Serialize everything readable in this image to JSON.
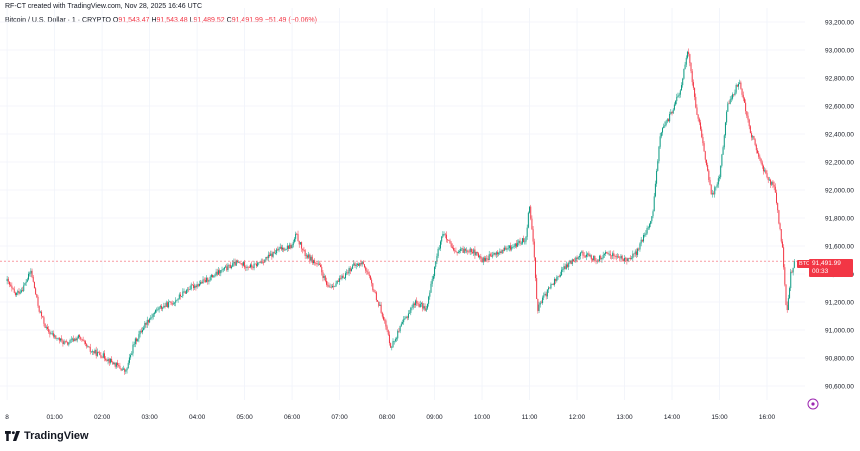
{
  "header": {
    "created_text": "RF-CT created with TradingView.com, Nov 28, 2025 16:46 UTC"
  },
  "legend": {
    "symbol": "Bitcoin / U.S. Dollar · 1 · CRYPTO",
    "open_label": "O",
    "open": "91,543.47",
    "high_label": "H",
    "high": "91,543.48",
    "low_label": "L",
    "low": "91,489.52",
    "close_label": "C",
    "close": "91,491.99",
    "change": "−51.49 (−0.06%)"
  },
  "price_badge": {
    "symbol": "BTCUSD",
    "price": "91,491.99",
    "countdown": "00:33"
  },
  "footer": {
    "brand": "TradingView"
  },
  "colors": {
    "up": "#089981",
    "down": "#f23645",
    "grid": "#f0f3fa",
    "axis_text": "#131722"
  },
  "icons": [
    "tradingview-logo-icon",
    "settings-icon"
  ],
  "chart_data": {
    "type": "candlestick",
    "title": "Bitcoin / U.S. Dollar · 1 · CRYPTO",
    "ylim": [
      90500,
      93300
    ],
    "y_ticks": [
      "93,200.00",
      "93,000.00",
      "92,800.00",
      "92,600.00",
      "92,400.00",
      "92,200.00",
      "92,000.00",
      "91,800.00",
      "91,600.00",
      "91,400.00",
      "91,200.00",
      "91,000.00",
      "90,800.00",
      "90,600.00"
    ],
    "x_ticks": [
      "8",
      "01:00",
      "02:00",
      "03:00",
      "04:00",
      "05:00",
      "06:00",
      "07:00",
      "08:00",
      "09:00",
      "10:00",
      "11:00",
      "12:00",
      "13:00",
      "14:00",
      "15:00",
      "16:00"
    ],
    "last_price": 91491.99,
    "price_path": [
      [
        "00:00",
        91350
      ],
      [
        "00:10",
        91250
      ],
      [
        "00:20",
        91300
      ],
      [
        "00:30",
        91420
      ],
      [
        "00:40",
        91150
      ],
      [
        "00:50",
        91000
      ],
      [
        "01:00",
        90950
      ],
      [
        "01:15",
        90900
      ],
      [
        "01:30",
        90950
      ],
      [
        "01:45",
        90850
      ],
      [
        "02:00",
        90820
      ],
      [
        "02:15",
        90760
      ],
      [
        "02:30",
        90700
      ],
      [
        "02:40",
        90900
      ],
      [
        "02:55",
        91050
      ],
      [
        "03:10",
        91150
      ],
      [
        "03:30",
        91200
      ],
      [
        "03:50",
        91300
      ],
      [
        "04:10",
        91350
      ],
      [
        "04:30",
        91420
      ],
      [
        "04:50",
        91480
      ],
      [
        "05:10",
        91450
      ],
      [
        "05:30",
        91520
      ],
      [
        "05:45",
        91580
      ],
      [
        "06:00",
        91600
      ],
      [
        "06:05",
        91680
      ],
      [
        "06:15",
        91550
      ],
      [
        "06:35",
        91450
      ],
      [
        "06:45",
        91300
      ],
      [
        "07:00",
        91350
      ],
      [
        "07:15",
        91450
      ],
      [
        "07:30",
        91480
      ],
      [
        "07:40",
        91330
      ],
      [
        "07:55",
        91100
      ],
      [
        "08:05",
        90880
      ],
      [
        "08:20",
        91050
      ],
      [
        "08:35",
        91200
      ],
      [
        "08:50",
        91150
      ],
      [
        "09:00",
        91450
      ],
      [
        "09:10",
        91700
      ],
      [
        "09:25",
        91550
      ],
      [
        "09:45",
        91580
      ],
      [
        "10:00",
        91500
      ],
      [
        "10:20",
        91550
      ],
      [
        "10:40",
        91600
      ],
      [
        "10:55",
        91650
      ],
      [
        "11:00",
        91900
      ],
      [
        "11:05",
        91600
      ],
      [
        "11:10",
        91150
      ],
      [
        "11:25",
        91300
      ],
      [
        "11:45",
        91450
      ],
      [
        "12:05",
        91550
      ],
      [
        "12:25",
        91500
      ],
      [
        "12:40",
        91550
      ],
      [
        "13:00",
        91500
      ],
      [
        "13:15",
        91550
      ],
      [
        "13:35",
        91800
      ],
      [
        "13:45",
        92400
      ],
      [
        "13:55",
        92500
      ],
      [
        "14:10",
        92700
      ],
      [
        "14:20",
        93000
      ],
      [
        "14:30",
        92600
      ],
      [
        "14:40",
        92300
      ],
      [
        "14:50",
        91950
      ],
      [
        "15:00",
        92100
      ],
      [
        "15:10",
        92600
      ],
      [
        "15:25",
        92780
      ],
      [
        "15:40",
        92400
      ],
      [
        "15:55",
        92150
      ],
      [
        "16:10",
        92000
      ],
      [
        "16:20",
        91550
      ],
      [
        "16:25",
        91100
      ],
      [
        "16:30",
        91400
      ],
      [
        "16:35",
        91492
      ]
    ]
  }
}
